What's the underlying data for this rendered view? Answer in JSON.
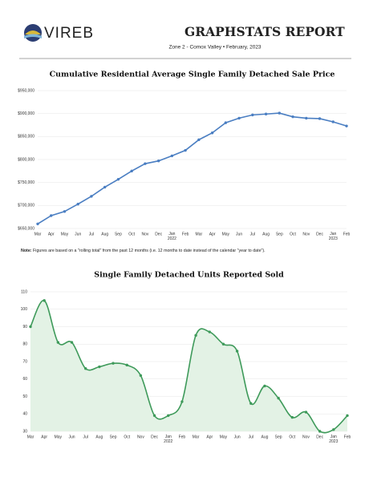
{
  "header": {
    "logo": "VIREB",
    "title": "GRAPHSTATS REPORT",
    "subtitle": "Zone 2 - Comox Valley • February, 2023"
  },
  "note": {
    "label": "Note:",
    "text": "Figures are based on a \"rolling total\" from the past 12 months (i.e. 12 months to date instead of the calendar \"year to date\")."
  },
  "chart_data": [
    {
      "type": "line",
      "title": "Cumulative Residential Average Single Family Detached Sale Price",
      "categories": [
        "Mar",
        "Apr",
        "May",
        "Jun",
        "Jul",
        "Aug",
        "Sep",
        "Oct",
        "Nov",
        "Dec",
        "Jan 2022",
        "Feb",
        "Mar",
        "Apr",
        "May",
        "Jun",
        "Jul",
        "Aug",
        "Sep",
        "Oct",
        "Nov",
        "Dec",
        "Jan 2023",
        "Feb"
      ],
      "series": [
        {
          "color": "#4a7ec2",
          "values": [
            660000,
            678000,
            687000,
            703000,
            720000,
            740000,
            757000,
            775000,
            791000,
            797000,
            808000,
            820000,
            843000,
            858000,
            880000,
            890000,
            897000,
            899000,
            901000,
            893000,
            890000,
            889000,
            882000,
            873000
          ]
        }
      ],
      "ylim": [
        650000,
        950000
      ],
      "yticks": [
        {
          "value": 650000,
          "label": "$650,000"
        },
        {
          "value": 700000,
          "label": "$700,000"
        },
        {
          "value": 750000,
          "label": "$750,000"
        },
        {
          "value": 800000,
          "label": "$800,000"
        },
        {
          "value": 850000,
          "label": "$850,000"
        },
        {
          "value": 900000,
          "label": "$900,000"
        },
        {
          "value": 950000,
          "label": "$950,000"
        }
      ],
      "grid": true,
      "smooth": false
    },
    {
      "type": "area",
      "title": "Single Family Detached Units Reported Sold",
      "categories": [
        "Mar",
        "Apr",
        "May",
        "Jun",
        "Jul",
        "Aug",
        "Sep",
        "Oct",
        "Nov",
        "Dec",
        "Jan 2022",
        "Feb",
        "Mar",
        "Apr",
        "May",
        "Jun",
        "Jul",
        "Aug",
        "Sep",
        "Oct",
        "Nov",
        "Dec",
        "Jan 2023",
        "Feb"
      ],
      "series": [
        {
          "color": "#3e9a5a",
          "fill_color": "#e3f2e5",
          "values": [
            90,
            105,
            81,
            81,
            66,
            67,
            69,
            68,
            62,
            39,
            39,
            47,
            85,
            87,
            80,
            76,
            46,
            56,
            49,
            38,
            41,
            30,
            31,
            39
          ]
        }
      ],
      "ylim": [
        30,
        110
      ],
      "yticks": [
        30,
        40,
        50,
        60,
        70,
        80,
        90,
        100,
        110
      ],
      "grid": true,
      "smooth": true
    }
  ]
}
